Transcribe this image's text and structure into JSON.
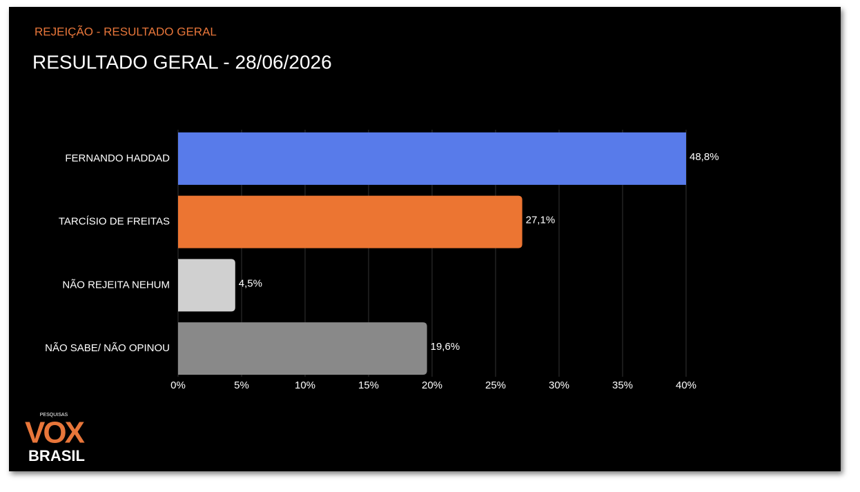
{
  "chart_data": {
    "type": "hbar",
    "subtitle": "REJEIÇÃO - RESULTADO GERAL",
    "title": "RESULTADO GERAL - 28/06/2026",
    "categories": [
      "FERNANDO HADDAD",
      "TARCÍSIO DE FREITAS",
      "NÃO REJEITA NEHUM",
      "NÃO SABE/ NÃO OPINOU"
    ],
    "values": [
      48.8,
      27.1,
      4.5,
      19.6
    ],
    "value_labels": [
      "48,8%",
      "27,1%",
      "4,5%",
      "19,6%"
    ],
    "colors": [
      "#587bea",
      "#ec7532",
      "#d0d0d0",
      "#898989"
    ],
    "xlim": [
      0,
      40
    ],
    "xticks": [
      {
        "value": 0,
        "label": "0%"
      },
      {
        "value": 5,
        "label": "5%"
      },
      {
        "value": 10,
        "label": "10%"
      },
      {
        "value": 15,
        "label": "15%"
      },
      {
        "value": 20,
        "label": "20%"
      },
      {
        "value": 25,
        "label": "25%"
      },
      {
        "value": 30,
        "label": "30%"
      },
      {
        "value": 35,
        "label": "35%"
      },
      {
        "value": 40,
        "label": "40%"
      }
    ],
    "grid": true
  },
  "logo": {
    "top": "PESQUISAS",
    "main": "VOX",
    "bottom": "BRASIL"
  }
}
